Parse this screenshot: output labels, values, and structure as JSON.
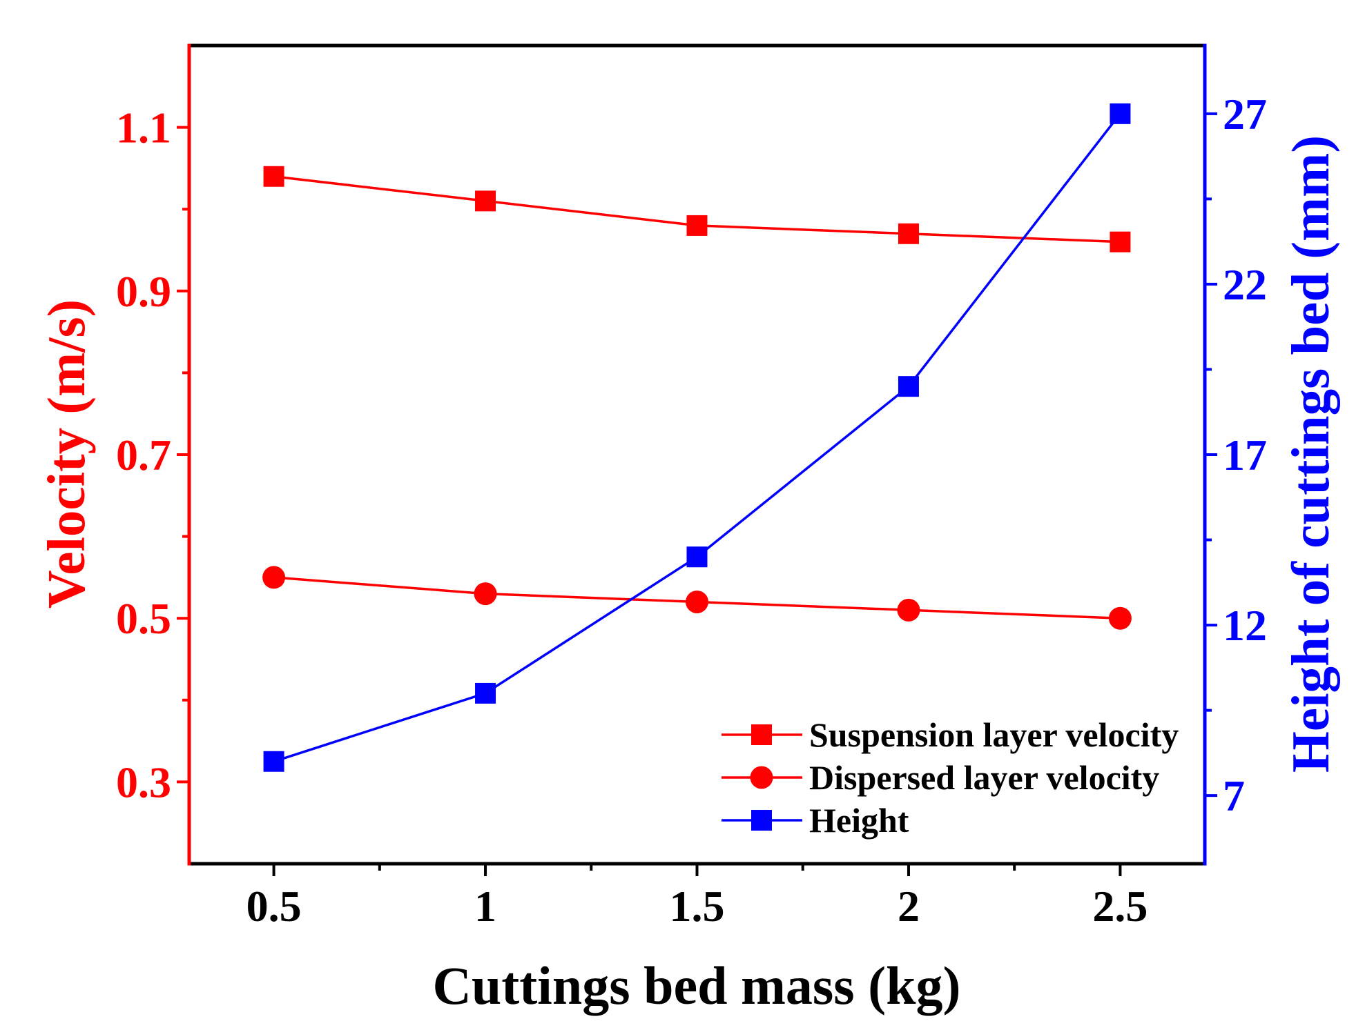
{
  "chart_data": {
    "type": "line",
    "title": "",
    "xlabel": "Cuttings bed mass (kg)",
    "ylabel": "Velocity (m/s)",
    "y2label": "Height of cuttings bed (mm)",
    "xlim": [
      0.3,
      2.7
    ],
    "ylim": [
      0.2,
      1.2
    ],
    "y2lim": [
      5,
      29
    ],
    "xticks": [
      0.5,
      1,
      1.5,
      2,
      2.5
    ],
    "xtick_labels": [
      "0.5",
      "1",
      "1.5",
      "2",
      "2.5"
    ],
    "xminor_ticks": [
      0.75,
      1.25,
      1.75,
      2.25
    ],
    "yticks": [
      0.3,
      0.5,
      0.7,
      0.9,
      1.1
    ],
    "ytick_labels": [
      "0.3",
      "0.5",
      "0.7",
      "0.9",
      "1.1"
    ],
    "yminor_ticks": [
      0.4,
      0.6,
      0.8,
      1.0
    ],
    "y2ticks": [
      7,
      12,
      17,
      22,
      27
    ],
    "y2tick_labels": [
      "7",
      "12",
      "17",
      "22",
      "27"
    ],
    "y2minor_ticks": [
      9.5,
      14.5,
      19.5,
      24.5
    ],
    "grid": false,
    "legend_position": "bottom-right",
    "x": [
      0.5,
      1,
      1.5,
      2,
      2.5
    ],
    "series": [
      {
        "name": "Suspension layer velocity",
        "axis": "left",
        "marker": "square",
        "color": "#ff0000",
        "values": [
          1.04,
          1.01,
          0.98,
          0.97,
          0.96
        ]
      },
      {
        "name": "Dispersed layer velocity",
        "axis": "left",
        "marker": "circle",
        "color": "#ff0000",
        "values": [
          0.55,
          0.53,
          0.52,
          0.51,
          0.5
        ]
      },
      {
        "name": "Height",
        "axis": "right",
        "marker": "square",
        "color": "#0000ff",
        "values": [
          8,
          10,
          14,
          19,
          27
        ]
      }
    ],
    "colors": {
      "frame": "#000000",
      "left_axis": "#ff0000",
      "right_axis": "#0000ff"
    }
  }
}
